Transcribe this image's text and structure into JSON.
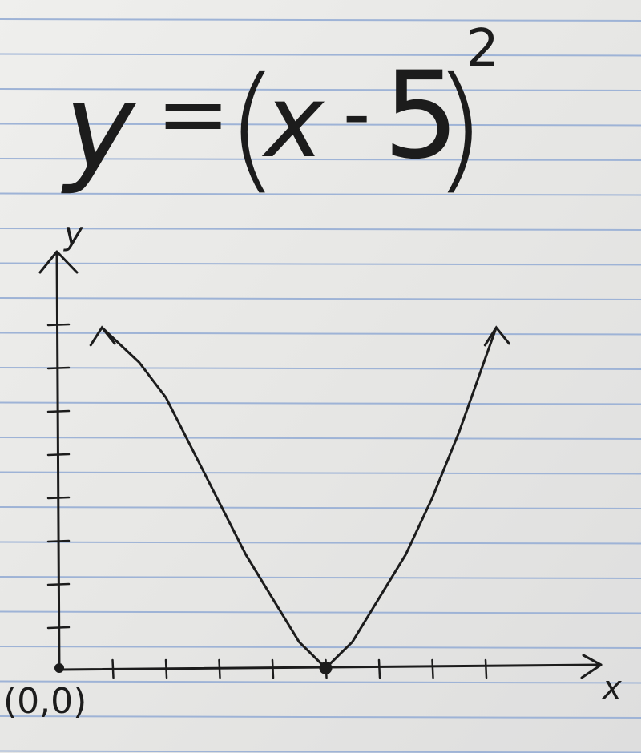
{
  "photo": {
    "subject": "hand-drawn graph on ruled notebook paper",
    "paper_color": "#e9e9e7",
    "rule_color": "#9eb3d6",
    "ink_color": "#1c1c1c"
  },
  "equation": {
    "lhs": "y",
    "equals": "=",
    "open_paren": "(",
    "var": "x",
    "minus": "-",
    "const": "5",
    "close_paren": ")",
    "exponent": "2"
  },
  "graph": {
    "y_axis_label": "y",
    "x_axis_label": "x",
    "origin_label": "(0,0)",
    "vertex": [
      5,
      0
    ]
  },
  "chart_data": {
    "type": "line",
    "title": "y=(x-5)^2",
    "xlabel": "x",
    "ylabel": "y",
    "x_ticks": [
      1,
      2,
      3,
      4,
      5,
      6,
      7,
      8
    ],
    "y_tick_count": 8,
    "series": [
      {
        "name": "y=(x-5)^2",
        "x": [
          0.8,
          1.5,
          2,
          2.5,
          3,
          3.5,
          4,
          4.5,
          5,
          5.5,
          6,
          6.5,
          7,
          7.5,
          8.2
        ],
        "y": [
          7.8,
          7.0,
          6.2,
          5.0,
          3.8,
          2.6,
          1.6,
          0.6,
          0,
          0.6,
          1.6,
          2.6,
          3.9,
          5.4,
          7.8
        ]
      }
    ],
    "points": [
      {
        "x": 0,
        "y": 0
      },
      {
        "x": 5,
        "y": 0
      }
    ]
  }
}
